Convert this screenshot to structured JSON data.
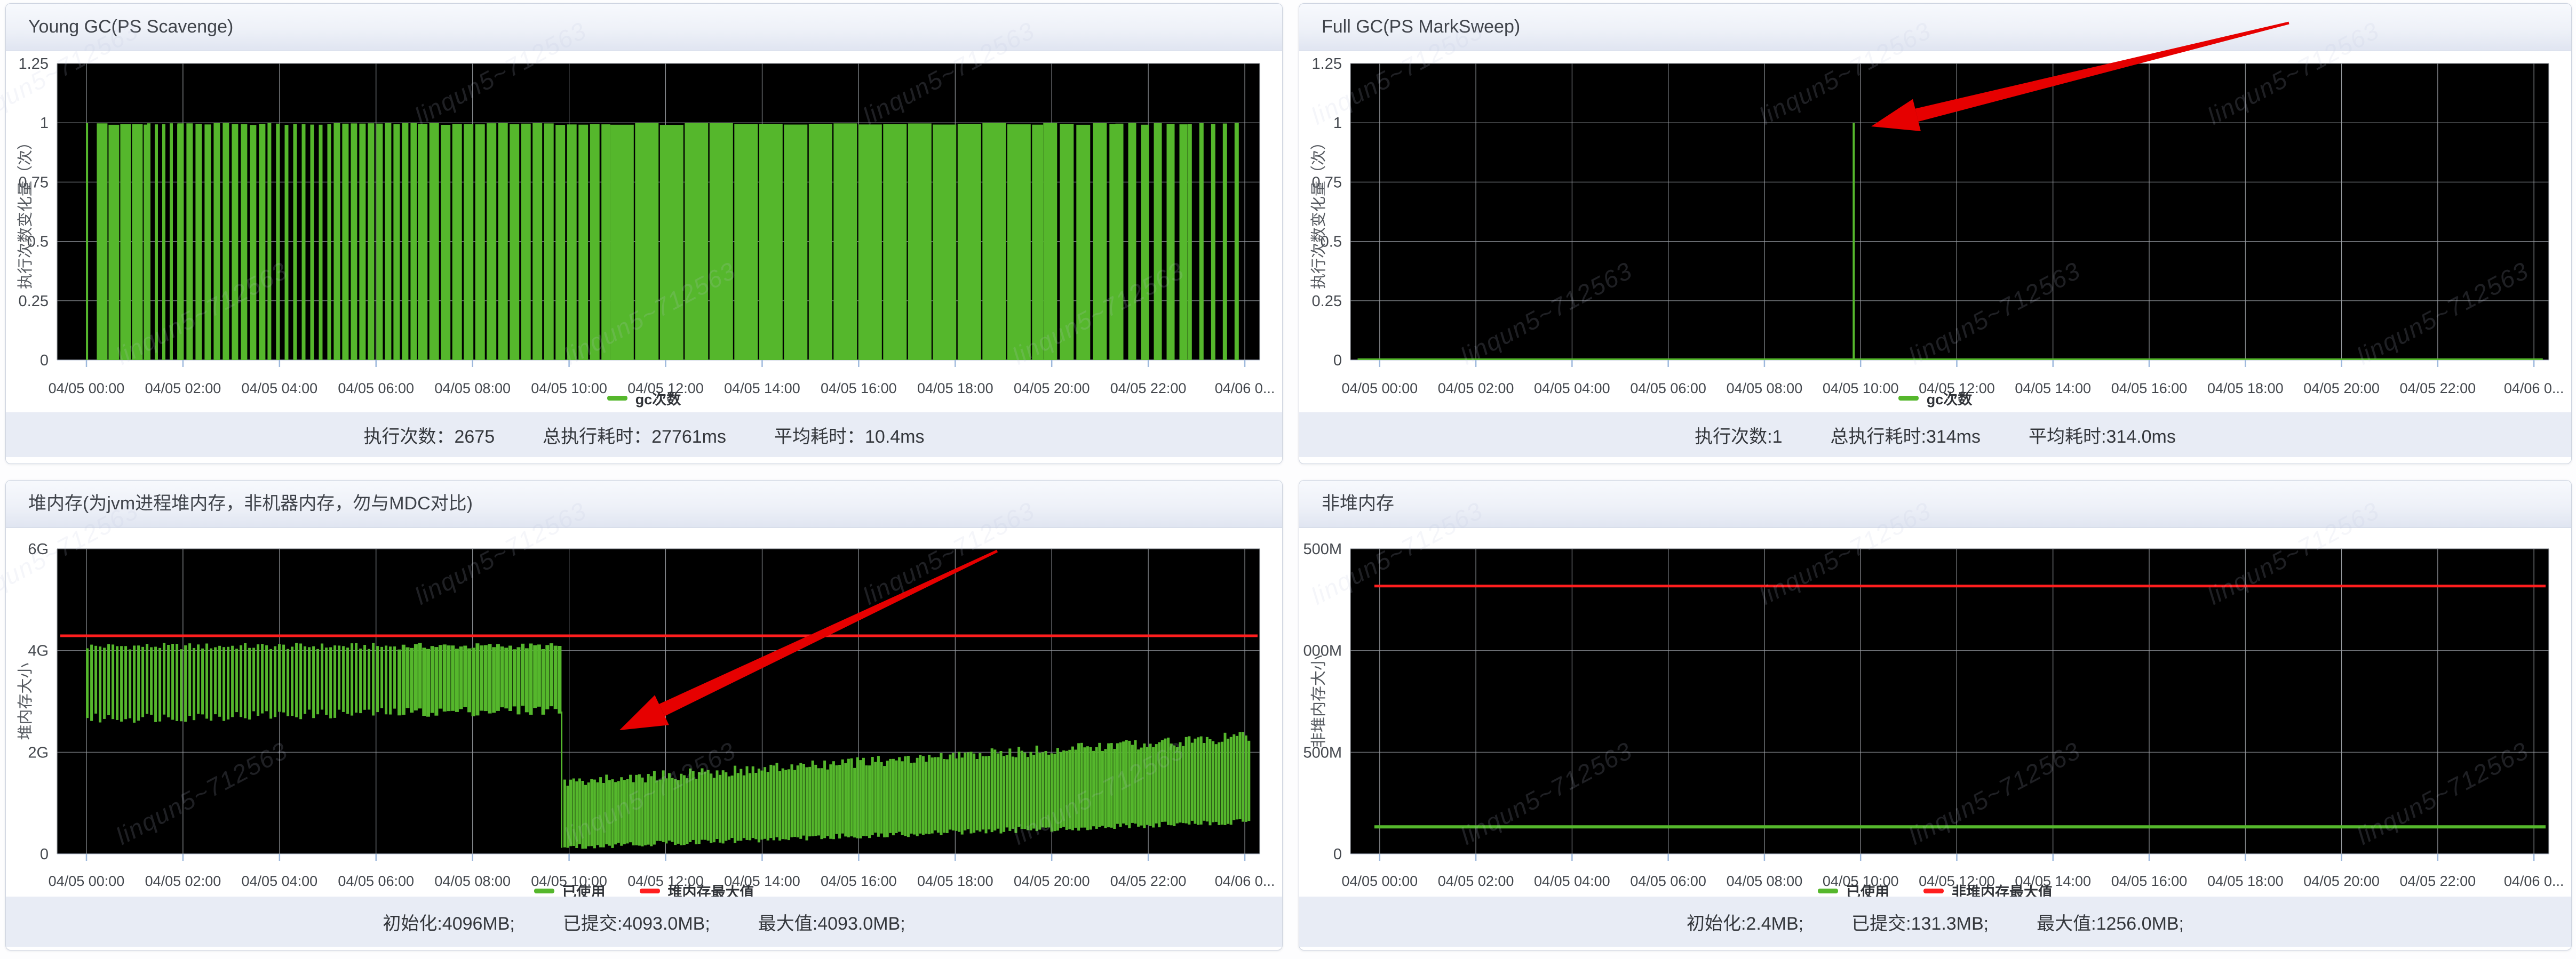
{
  "watermark": {
    "text": "linqun5~712563"
  },
  "colors": {
    "series_green": "#55b72c",
    "max_line_red": "#ff1e1e",
    "arrow_red": "#e60000",
    "plot_background": "#000000",
    "grid_line": "#84888e",
    "tick_mark": "#9db8dc",
    "footer_band": "#e8ecf5"
  },
  "chart_data": [
    {
      "id": "young-gc",
      "type": "bar",
      "title": "Young GC(PS Scavenge)",
      "axis": {
        "ylabel": "执行次数变化量（次）",
        "ymax": 1.25,
        "yticks": {
          "values": [
            0,
            0.25,
            0.5,
            0.75,
            1,
            1.25
          ],
          "labels": [
            "0",
            "0.25",
            "0.5",
            "0.75",
            "1",
            "1.25"
          ]
        },
        "xticks": [
          "04/05 00:00",
          "04/05 02:00",
          "04/05 04:00",
          "04/05 06:00",
          "04/05 08:00",
          "04/05 10:00",
          "04/05 12:00",
          "04/05 14:00",
          "04/05 16:00",
          "04/05 18:00",
          "04/05 20:00",
          "04/05 22:00",
          "04/06 0..."
        ]
      },
      "legend": [
        {
          "label": "gc次数",
          "color": "#55b72c"
        }
      ],
      "series": {
        "name": "gc次数",
        "bar_value": 1,
        "total_count": 2675,
        "note": "约2675次Young GC, 每根柱值为1, 全天密集分布, 06:00-21:00几乎连成实心绿色"
      },
      "summary_parts": [
        "执行次数：2675",
        "总执行耗时：27761ms",
        "平均耗时：10.4ms"
      ],
      "render": {
        "kind": "gcbars",
        "value": 1,
        "segments": [
          [
            0.024,
            0.033,
            4,
            18
          ],
          [
            0.033,
            0.075,
            20,
            2
          ],
          [
            0.075,
            0.1,
            6,
            8
          ],
          [
            0.1,
            0.175,
            12,
            5
          ],
          [
            0.175,
            0.23,
            7,
            9
          ],
          [
            0.23,
            0.3,
            12,
            4
          ],
          [
            0.3,
            0.46,
            18,
            3.5
          ],
          [
            0.46,
            0.82,
            44,
            2.5
          ],
          [
            0.82,
            0.88,
            26,
            5
          ],
          [
            0.88,
            0.94,
            15,
            9
          ],
          [
            0.94,
            0.988,
            8,
            14
          ]
        ]
      }
    },
    {
      "id": "full-gc",
      "type": "bar",
      "title": "Full GC(PS MarkSweep)",
      "axis": {
        "ylabel": "执行次数变化量（次）",
        "ymax": 1.25,
        "yticks": {
          "values": [
            0,
            0.25,
            0.5,
            0.75,
            1,
            1.25
          ],
          "labels": [
            "0",
            "0.25",
            "0.5",
            "0.75",
            "1",
            "1.25"
          ]
        },
        "xticks": [
          "04/05 00:00",
          "04/05 02:00",
          "04/05 04:00",
          "04/05 06:00",
          "04/05 08:00",
          "04/05 10:00",
          "04/05 12:00",
          "04/05 14:00",
          "04/05 16:00",
          "04/05 18:00",
          "04/05 20:00",
          "04/05 22:00",
          "04/06 0..."
        ]
      },
      "legend": [
        {
          "label": "gc次数",
          "color": "#55b72c"
        }
      ],
      "series": {
        "name": "gc次数",
        "baseline": 0,
        "spikes": [
          {
            "time": "04/05 ~09:50",
            "value": 1
          }
        ],
        "note": "全程为0, 仅在约04/05 09:50发生1次Full GC(值为1), 红色箭头指向该尖峰"
      },
      "summary_parts": [
        "执行次数:1",
        "总执行耗时:314ms",
        "平均耗时:314.0ms"
      ],
      "render": {
        "kind": "spike",
        "spike_frac": 0.42,
        "value": 1
      },
      "annotation": {
        "type": "red-arrow",
        "tail": [
          1855,
          36
        ],
        "tip": [
          1072,
          230
        ]
      }
    },
    {
      "id": "heap-memory",
      "type": "area",
      "title": "堆内存(为jvm进程堆内存，非机器内存，勿与MDC对比)",
      "axis": {
        "ylabel": "堆内存大小",
        "ymax": 6,
        "yticks": {
          "values": [
            0,
            2,
            4,
            6
          ],
          "labels": [
            "0",
            "2G",
            "4G",
            "6G"
          ]
        },
        "xticks": [
          "04/05 00:00",
          "04/05 02:00",
          "04/05 04:00",
          "04/05 06:00",
          "04/05 08:00",
          "04/05 10:00",
          "04/05 12:00",
          "04/05 14:00",
          "04/05 16:00",
          "04/05 18:00",
          "04/05 20:00",
          "04/05 22:00",
          "04/06 0..."
        ]
      },
      "legend": [
        {
          "label": "已使用",
          "color": "#55b72c"
        },
        {
          "label": "堆内存最大值",
          "color": "#ff1e1e"
        }
      ],
      "series": [
        {
          "name": "已使用",
          "note": "00:00-09:50在2.6G~4.1G间锯齿震荡, 约04/05 09:50骤降至~0.15G(红色箭头所指), 之后噪声带缓慢爬升至04/06约2.2G"
        },
        {
          "name": "堆内存最大值",
          "value_mb": 4093,
          "value_g": 4.29,
          "note": "水平红线, 约4.29G"
        }
      ],
      "summary_parts": [
        "初始化:4096MB;",
        "已提交:4093.0MB;",
        "最大值:4093.0MB;"
      ],
      "render": {
        "kind": "band",
        "red_line_g": 4.29,
        "cliff": {
          "frac": 0.4195,
          "from_g": 2.8,
          "to_g": 0.12
        },
        "phase_a": {
          "f0": 0.024,
          "f1": 0.418,
          "stripe_end": 0.28,
          "top_base": 4.02,
          "top_jit": 0.13,
          "bot_base": 2.56,
          "bot_jit": 0.2,
          "bot_trend": 0.18,
          "bar": 5,
          "gap": 3,
          "bar2": 7,
          "gap2": 0.7
        },
        "phase_b": {
          "f0": 0.421,
          "f1": 0.992,
          "top0": 1.3,
          "top1": 2.2,
          "top_jit": 0.22,
          "bot0": 0.08,
          "bot1": 0.58,
          "bot_jit": 0.12,
          "bar": 5,
          "gap": 0.6
        }
      },
      "annotation": {
        "type": "red-arrow",
        "tail": [
          1858,
          132
        ],
        "tip": [
          1150,
          468
        ]
      }
    },
    {
      "id": "non-heap-memory",
      "type": "line",
      "title": "非堆内存",
      "axis": {
        "ylabel": "非堆内存大小",
        "ymax": 1500,
        "yticks": {
          "values": [
            0,
            500,
            1000,
            1500
          ],
          "labels": [
            "0",
            "500M",
            "1 000M",
            "1 500M"
          ]
        },
        "xticks": [
          "04/05 00:00",
          "04/05 02:00",
          "04/05 04:00",
          "04/05 06:00",
          "04/05 08:00",
          "04/05 10:00",
          "04/05 12:00",
          "04/05 14:00",
          "04/05 16:00",
          "04/05 18:00",
          "04/05 20:00",
          "04/05 22:00",
          "04/06 0..."
        ]
      },
      "legend": [
        {
          "label": "已使用",
          "color": "#55b72c"
        },
        {
          "label": "非堆内存最大值",
          "color": "#ff1e1e"
        }
      ],
      "series": [
        {
          "name": "已使用",
          "value_m": 133,
          "note": "水平绿线, 约130M恒定"
        },
        {
          "name": "非堆内存最大值",
          "value_mb": 1256,
          "value_m": 1317,
          "note": "水平红线, 约1317M(=1256.0MB)"
        }
      ],
      "summary_parts": [
        "初始化:2.4MB;",
        "已提交:131.3MB;",
        "最大值:1256.0MB;"
      ],
      "render": {
        "kind": "flatlines",
        "green_m": 133,
        "red_m": 1317
      }
    }
  ]
}
